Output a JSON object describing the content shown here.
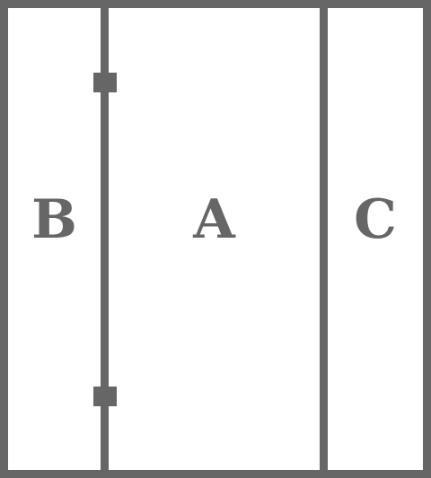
{
  "panels": {
    "left": {
      "label": "B"
    },
    "middle": {
      "label": "A"
    },
    "right": {
      "label": "C"
    }
  },
  "colors": {
    "stroke": "#666666",
    "background": "#ffffff"
  }
}
